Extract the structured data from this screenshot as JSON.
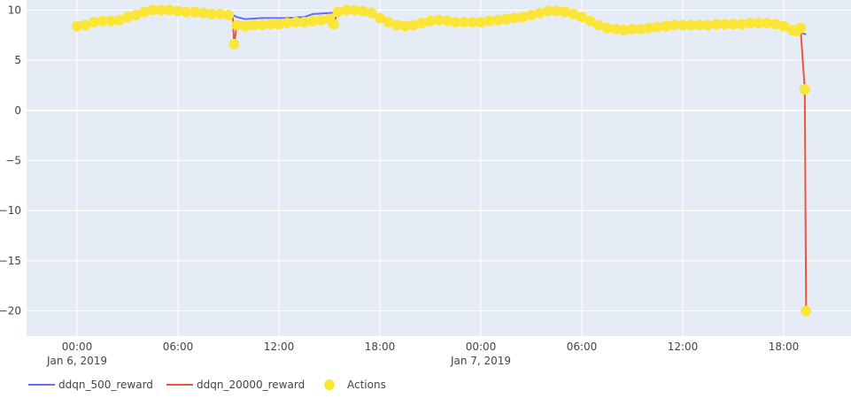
{
  "chart_data": {
    "type": "line",
    "title": "",
    "xlabel": "",
    "ylabel": "",
    "x_type": "datetime",
    "xlim": [
      "2019-01-05T21:00",
      "2019-01-07T22:00"
    ],
    "ylim": [
      -22.5,
      11
    ],
    "grid": true,
    "legend_placement": "bottom-left horizontal",
    "x_ticks": [
      {
        "t": "2019-01-06T00:00",
        "label": "00:00",
        "label2": "Jan 6, 2019"
      },
      {
        "t": "2019-01-06T06:00",
        "label": "06:00",
        "label2": ""
      },
      {
        "t": "2019-01-06T12:00",
        "label": "12:00",
        "label2": ""
      },
      {
        "t": "2019-01-06T18:00",
        "label": "18:00",
        "label2": ""
      },
      {
        "t": "2019-01-07T00:00",
        "label": "00:00",
        "label2": "Jan 7, 2019"
      },
      {
        "t": "2019-01-07T06:00",
        "label": "06:00",
        "label2": ""
      },
      {
        "t": "2019-01-07T12:00",
        "label": "12:00",
        "label2": ""
      },
      {
        "t": "2019-01-07T18:00",
        "label": "18:00",
        "label2": ""
      }
    ],
    "y_ticks": [
      {
        "v": 10,
        "label": "10"
      },
      {
        "v": 5,
        "label": "5"
      },
      {
        "v": 0,
        "label": "0"
      },
      {
        "v": -5,
        "label": "−5"
      },
      {
        "v": -10,
        "label": "−10"
      },
      {
        "v": -15,
        "label": "−15"
      },
      {
        "v": -20,
        "label": "−20"
      }
    ],
    "series": [
      {
        "name": "ddqn_500_reward",
        "mode": "lines",
        "color": "#636efa",
        "points": [
          [
            "2019-01-06T00:00",
            8.4
          ],
          [
            "2019-01-06T02:00",
            8.9
          ],
          [
            "2019-01-06T03:30",
            9.5
          ],
          [
            "2019-01-06T05:00",
            10.0
          ],
          [
            "2019-01-06T07:00",
            9.8
          ],
          [
            "2019-01-06T09:15",
            9.5
          ],
          [
            "2019-01-06T09:30",
            9.3
          ],
          [
            "2019-01-06T10:00",
            9.1
          ],
          [
            "2019-01-06T11:00",
            9.2
          ],
          [
            "2019-01-06T12:30",
            9.2
          ],
          [
            "2019-01-06T13:30",
            9.3
          ],
          [
            "2019-01-06T14:00",
            9.6
          ],
          [
            "2019-01-06T15:00",
            9.7
          ],
          [
            "2019-01-06T16:30",
            10.0
          ],
          [
            "2019-01-06T18:00",
            9.2
          ],
          [
            "2019-01-06T19:30",
            8.4
          ],
          [
            "2019-01-06T21:30",
            9.0
          ],
          [
            "2019-01-07T00:00",
            8.8
          ],
          [
            "2019-01-07T02:00",
            9.2
          ],
          [
            "2019-01-07T04:30",
            9.9
          ],
          [
            "2019-01-07T06:00",
            9.3
          ],
          [
            "2019-01-07T07:30",
            8.2
          ],
          [
            "2019-01-07T09:30",
            8.1
          ],
          [
            "2019-01-07T12:00",
            8.5
          ],
          [
            "2019-01-07T15:00",
            8.6
          ],
          [
            "2019-01-07T17:30",
            8.6
          ],
          [
            "2019-01-07T18:40",
            8.0
          ],
          [
            "2019-01-07T19:15",
            7.6
          ],
          [
            "2019-01-07T19:20",
            7.6
          ]
        ]
      },
      {
        "name": "ddqn_20000_reward",
        "mode": "lines",
        "color": "#ef553b",
        "points": [
          [
            "2019-01-06T00:00",
            8.4
          ],
          [
            "2019-01-06T02:00",
            8.9
          ],
          [
            "2019-01-06T03:30",
            9.5
          ],
          [
            "2019-01-06T05:00",
            10.0
          ],
          [
            "2019-01-06T07:00",
            9.8
          ],
          [
            "2019-01-06T09:15",
            9.5
          ],
          [
            "2019-01-06T09:20",
            6.6
          ],
          [
            "2019-01-06T09:30",
            8.5
          ],
          [
            "2019-01-06T11:00",
            8.5
          ],
          [
            "2019-01-06T13:00",
            8.8
          ],
          [
            "2019-01-06T14:30",
            8.9
          ],
          [
            "2019-01-06T15:00",
            9.0
          ],
          [
            "2019-01-06T15:15",
            8.6
          ],
          [
            "2019-01-06T15:30",
            9.8
          ],
          [
            "2019-01-06T16:30",
            10.0
          ],
          [
            "2019-01-06T18:00",
            9.2
          ],
          [
            "2019-01-06T19:30",
            8.4
          ],
          [
            "2019-01-06T21:30",
            9.0
          ],
          [
            "2019-01-07T00:00",
            8.8
          ],
          [
            "2019-01-07T02:00",
            9.2
          ],
          [
            "2019-01-07T04:30",
            9.9
          ],
          [
            "2019-01-07T06:00",
            9.3
          ],
          [
            "2019-01-07T07:30",
            8.2
          ],
          [
            "2019-01-07T09:30",
            8.1
          ],
          [
            "2019-01-07T12:00",
            8.5
          ],
          [
            "2019-01-07T15:00",
            8.6
          ],
          [
            "2019-01-07T17:30",
            8.6
          ],
          [
            "2019-01-07T18:40",
            8.0
          ],
          [
            "2019-01-07T19:00",
            8.2
          ],
          [
            "2019-01-07T19:15",
            2.1
          ],
          [
            "2019-01-07T19:20",
            -20.0
          ]
        ]
      },
      {
        "name": "Actions",
        "mode": "markers",
        "color": "#fbe638",
        "points": [
          [
            "2019-01-06T00:00",
            8.4
          ],
          [
            "2019-01-06T00:30",
            8.5
          ],
          [
            "2019-01-06T01:00",
            8.8
          ],
          [
            "2019-01-06T01:30",
            8.9
          ],
          [
            "2019-01-06T02:00",
            8.9
          ],
          [
            "2019-01-06T02:30",
            9.0
          ],
          [
            "2019-01-06T03:00",
            9.3
          ],
          [
            "2019-01-06T03:30",
            9.5
          ],
          [
            "2019-01-06T04:00",
            9.8
          ],
          [
            "2019-01-06T04:30",
            10.0
          ],
          [
            "2019-01-06T05:00",
            10.0
          ],
          [
            "2019-01-06T05:30",
            10.0
          ],
          [
            "2019-01-06T06:00",
            9.9
          ],
          [
            "2019-01-06T06:30",
            9.8
          ],
          [
            "2019-01-06T07:00",
            9.8
          ],
          [
            "2019-01-06T07:30",
            9.7
          ],
          [
            "2019-01-06T08:00",
            9.6
          ],
          [
            "2019-01-06T08:30",
            9.6
          ],
          [
            "2019-01-06T09:00",
            9.5
          ],
          [
            "2019-01-06T09:20",
            6.6
          ],
          [
            "2019-01-06T09:30",
            8.5
          ],
          [
            "2019-01-06T10:00",
            8.4
          ],
          [
            "2019-01-06T10:30",
            8.5
          ],
          [
            "2019-01-06T11:00",
            8.5
          ],
          [
            "2019-01-06T11:30",
            8.6
          ],
          [
            "2019-01-06T12:00",
            8.6
          ],
          [
            "2019-01-06T12:30",
            8.7
          ],
          [
            "2019-01-06T13:00",
            8.8
          ],
          [
            "2019-01-06T13:30",
            8.8
          ],
          [
            "2019-01-06T14:00",
            8.9
          ],
          [
            "2019-01-06T14:30",
            9.0
          ],
          [
            "2019-01-06T15:00",
            9.1
          ],
          [
            "2019-01-06T15:15",
            8.6
          ],
          [
            "2019-01-06T15:30",
            9.8
          ],
          [
            "2019-01-06T16:00",
            10.0
          ],
          [
            "2019-01-06T16:30",
            10.0
          ],
          [
            "2019-01-06T17:00",
            9.9
          ],
          [
            "2019-01-06T17:30",
            9.7
          ],
          [
            "2019-01-06T18:00",
            9.2
          ],
          [
            "2019-01-06T18:30",
            8.8
          ],
          [
            "2019-01-06T19:00",
            8.5
          ],
          [
            "2019-01-06T19:30",
            8.4
          ],
          [
            "2019-01-06T20:00",
            8.5
          ],
          [
            "2019-01-06T20:30",
            8.7
          ],
          [
            "2019-01-06T21:00",
            8.9
          ],
          [
            "2019-01-06T21:30",
            9.0
          ],
          [
            "2019-01-06T22:00",
            8.9
          ],
          [
            "2019-01-06T22:30",
            8.8
          ],
          [
            "2019-01-06T23:00",
            8.8
          ],
          [
            "2019-01-06T23:30",
            8.8
          ],
          [
            "2019-01-07T00:00",
            8.8
          ],
          [
            "2019-01-07T00:30",
            8.9
          ],
          [
            "2019-01-07T01:00",
            9.0
          ],
          [
            "2019-01-07T01:30",
            9.1
          ],
          [
            "2019-01-07T02:00",
            9.2
          ],
          [
            "2019-01-07T02:30",
            9.3
          ],
          [
            "2019-01-07T03:00",
            9.5
          ],
          [
            "2019-01-07T03:30",
            9.7
          ],
          [
            "2019-01-07T04:00",
            9.9
          ],
          [
            "2019-01-07T04:30",
            9.9
          ],
          [
            "2019-01-07T05:00",
            9.8
          ],
          [
            "2019-01-07T05:30",
            9.6
          ],
          [
            "2019-01-07T06:00",
            9.3
          ],
          [
            "2019-01-07T06:30",
            8.9
          ],
          [
            "2019-01-07T07:00",
            8.5
          ],
          [
            "2019-01-07T07:30",
            8.2
          ],
          [
            "2019-01-07T08:00",
            8.1
          ],
          [
            "2019-01-07T08:30",
            8.0
          ],
          [
            "2019-01-07T09:00",
            8.1
          ],
          [
            "2019-01-07T09:30",
            8.1
          ],
          [
            "2019-01-07T10:00",
            8.2
          ],
          [
            "2019-01-07T10:30",
            8.3
          ],
          [
            "2019-01-07T11:00",
            8.4
          ],
          [
            "2019-01-07T11:30",
            8.5
          ],
          [
            "2019-01-07T12:00",
            8.5
          ],
          [
            "2019-01-07T12:30",
            8.5
          ],
          [
            "2019-01-07T13:00",
            8.5
          ],
          [
            "2019-01-07T13:30",
            8.5
          ],
          [
            "2019-01-07T14:00",
            8.6
          ],
          [
            "2019-01-07T14:30",
            8.6
          ],
          [
            "2019-01-07T15:00",
            8.6
          ],
          [
            "2019-01-07T15:30",
            8.6
          ],
          [
            "2019-01-07T16:00",
            8.7
          ],
          [
            "2019-01-07T16:30",
            8.7
          ],
          [
            "2019-01-07T17:00",
            8.7
          ],
          [
            "2019-01-07T17:30",
            8.6
          ],
          [
            "2019-01-07T18:00",
            8.4
          ],
          [
            "2019-01-07T18:30",
            8.0
          ],
          [
            "2019-01-07T18:45",
            7.9
          ],
          [
            "2019-01-07T19:00",
            8.2
          ],
          [
            "2019-01-07T19:15",
            2.1
          ],
          [
            "2019-01-07T19:20",
            -20.0
          ]
        ]
      }
    ]
  }
}
